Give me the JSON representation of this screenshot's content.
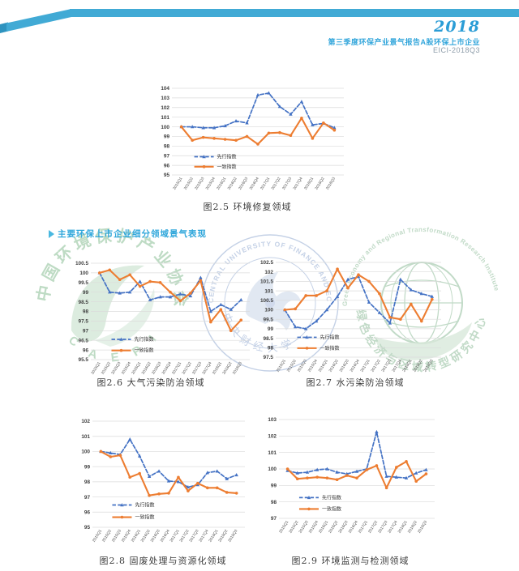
{
  "header": {
    "year": "2018",
    "subtitle": "第三季度环保产业景气报告A股环保上市企业",
    "code": "EICI-2018Q3",
    "ribbon_color": "#41aad5",
    "ribbon_fold_color": "#2e93bf",
    "accent_color": "#2b9dd6"
  },
  "section": {
    "heading": "主要环保上市企业细分领域景气表现"
  },
  "watermarks": {
    "left": {
      "ring_text": "中国环境保护产业协会",
      "bottom_text": "C A E P I",
      "color": "#7fb98b"
    },
    "center": {
      "ring_text": "CENTRAL UNIVERSITY OF FINANCE AND ECONOMICS",
      "bottom_text": "中央财经大学",
      "color": "#7e9ac9"
    },
    "right": {
      "ring_text": "Green Economy and Regional Transformation Research Institute",
      "bottom_text": "绿色经济与区域转型研究中心",
      "color": "#8fbd9a"
    }
  },
  "chart_data": [
    {
      "type": "line",
      "caption": "图2.5 环境修复领域",
      "categories": [
        "2015Q1",
        "2015Q2",
        "2015Q3",
        "2015Q4",
        "2016Q1",
        "2016Q2",
        "2016Q3",
        "2016Q4",
        "2017Q1",
        "2017Q2",
        "2017Q3",
        "2017Q4",
        "2018Q1",
        "2018Q2",
        "2018Q3"
      ],
      "ylim": [
        95,
        104
      ],
      "ytick": 1,
      "grid": true,
      "legend_position": "inside-bottom-left",
      "series": [
        {
          "name": "先行指数",
          "style": "dashed",
          "color": "#4472C4",
          "marker": "triangle",
          "values": [
            100,
            100,
            99.9,
            99.9,
            100.1,
            100.6,
            100.4,
            103.3,
            103.5,
            102.1,
            101.3,
            102.6,
            100.2,
            100.35,
            99.9
          ]
        },
        {
          "name": "一致指数",
          "style": "solid",
          "color": "#ED7D31",
          "marker": "circle",
          "values": [
            100,
            98.6,
            98.9,
            98.8,
            98.7,
            98.6,
            99,
            98.2,
            99.35,
            99.4,
            99.1,
            100.9,
            98.8,
            100.4,
            99.65
          ]
        }
      ]
    },
    {
      "type": "line",
      "caption": "图2.6 大气污染防治领域",
      "categories": [
        "2015Q1",
        "2015Q2",
        "2015Q3",
        "2015Q4",
        "2016Q1",
        "2016Q2",
        "2016Q3",
        "2016Q4",
        "2017Q1",
        "2017Q2",
        "2017Q3",
        "2017Q4",
        "2018Q1",
        "2018Q2",
        "2018Q3"
      ],
      "ylim": [
        95.5,
        100.5
      ],
      "ytick": 0.5,
      "grid": true,
      "legend_position": "inside-bottom-left",
      "series": [
        {
          "name": "先行指数",
          "style": "dashed",
          "color": "#4472C4",
          "marker": "triangle",
          "values": [
            100,
            99,
            98.95,
            99,
            99.55,
            98.6,
            98.75,
            98.75,
            98.9,
            98.8,
            99.75,
            98,
            98.35,
            98.1,
            98.6
          ]
        },
        {
          "name": "一致指数",
          "style": "solid",
          "color": "#ED7D31",
          "marker": "circle",
          "values": [
            100,
            100.15,
            99.65,
            99.9,
            99.3,
            99.55,
            99.5,
            99,
            98.55,
            98.95,
            99.6,
            97.45,
            98.1,
            97,
            97.55
          ]
        }
      ]
    },
    {
      "type": "line",
      "caption": "图2.7 水污染防治领域",
      "categories": [
        "2015Q1",
        "2015Q2",
        "2015Q3",
        "2015Q4",
        "2016Q1",
        "2016Q2",
        "2016Q3",
        "2016Q4",
        "2017Q1",
        "2017Q2",
        "2017Q3",
        "2017Q4",
        "2018Q1",
        "2018Q2",
        "2018Q3"
      ],
      "ylim": [
        97.5,
        102.5
      ],
      "ytick": 0.5,
      "grid": true,
      "legend_position": "inside-bottom-left",
      "series": [
        {
          "name": "先行指数",
          "style": "dashed",
          "color": "#4472C4",
          "marker": "triangle",
          "values": [
            100,
            99.1,
            99,
            99.4,
            100,
            100.7,
            101.6,
            101.75,
            100.4,
            99.85,
            99.3,
            101.6,
            101.05,
            100.85,
            100.7
          ]
        },
        {
          "name": "一致指数",
          "style": "solid",
          "color": "#ED7D31",
          "marker": "circle",
          "values": [
            100,
            100.05,
            100.75,
            100.75,
            101,
            102.15,
            101.15,
            101.85,
            101.5,
            100.85,
            99.6,
            99.5,
            100.3,
            99.4,
            100.55
          ]
        }
      ]
    },
    {
      "type": "line",
      "caption": "图2.8 固废处理与资源化领域",
      "categories": [
        "2015Q1",
        "2015Q2",
        "2015Q3",
        "2015Q4",
        "2016Q1",
        "2016Q2",
        "2016Q3",
        "2016Q4",
        "2017Q1",
        "2017Q2",
        "2017Q3",
        "2017Q4",
        "2018Q1",
        "2018Q2",
        "2018Q3"
      ],
      "ylim": [
        95,
        102
      ],
      "ytick": 1,
      "grid": true,
      "legend_position": "inside-bottom-left",
      "series": [
        {
          "name": "先行指数",
          "style": "dashed",
          "color": "#4472C4",
          "marker": "triangle",
          "values": [
            100,
            99.9,
            99.8,
            100.8,
            99.7,
            98.35,
            98.7,
            98.05,
            98,
            97.65,
            97.8,
            98.6,
            98.7,
            98.2,
            98.45
          ]
        },
        {
          "name": "一致指数",
          "style": "solid",
          "color": "#ED7D31",
          "marker": "circle",
          "values": [
            100,
            99.65,
            99.75,
            98.3,
            98.55,
            97.1,
            97.2,
            97.25,
            98.3,
            97.4,
            97.9,
            97.6,
            97.6,
            97.3,
            97.25
          ]
        }
      ]
    },
    {
      "type": "line",
      "caption": "图2.9 环境监测与检测领域",
      "categories": [
        "2015Q1",
        "2015Q2",
        "2015Q3",
        "2015Q4",
        "2016Q1",
        "2016Q2",
        "2016Q3",
        "2016Q4",
        "2017Q1",
        "2017Q2",
        "2017Q3",
        "2017Q4",
        "2018Q1",
        "2018Q2",
        "2018Q3"
      ],
      "ylim": [
        97,
        103
      ],
      "ytick": 1,
      "grid": true,
      "legend_position": "inside-bottom-left",
      "series": [
        {
          "name": "先行指数",
          "style": "dashed",
          "color": "#4472C4",
          "marker": "triangle",
          "values": [
            99.9,
            99.75,
            99.8,
            99.95,
            100,
            99.8,
            99.7,
            99.85,
            100,
            102.25,
            99.55,
            99.5,
            99.45,
            99.75,
            99.95
          ]
        },
        {
          "name": "一致指数",
          "style": "solid",
          "color": "#ED7D31",
          "marker": "circle",
          "values": [
            100,
            99.4,
            99.45,
            99.5,
            99.45,
            99.35,
            99.6,
            99.45,
            99.95,
            100.2,
            98.85,
            100.1,
            100.45,
            99.25,
            99.7
          ]
        }
      ]
    }
  ]
}
